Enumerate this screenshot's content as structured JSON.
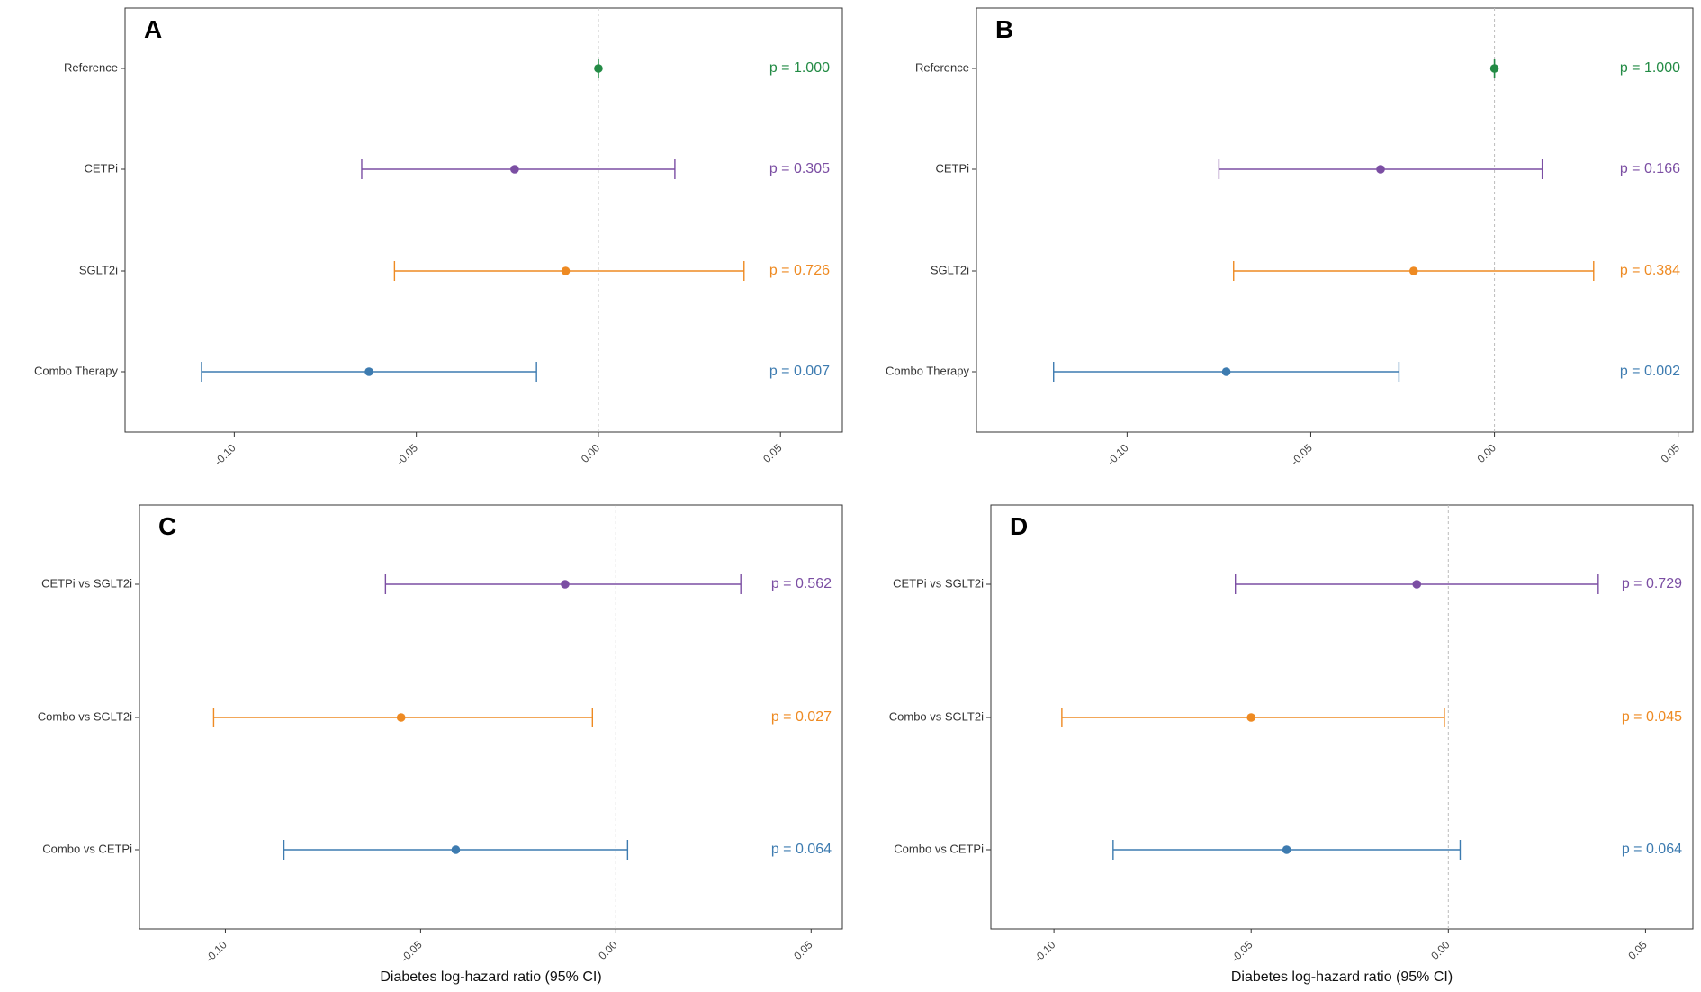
{
  "chart_data": [
    {
      "panel": "A",
      "type": "forest",
      "xlim": [
        -0.13,
        0.067
      ],
      "ticks": [
        -0.1,
        -0.05,
        0.0,
        0.05
      ],
      "tick_labels": [
        "-0.10",
        "-0.05",
        "0.00",
        "0.05"
      ],
      "reference_line": 0,
      "xlabel": "",
      "rows": [
        {
          "label": "Reference",
          "estimate": 0.0,
          "lower": 0.0,
          "upper": 0.0,
          "p": "p = 1.000",
          "color": "#238b45"
        },
        {
          "label": "CETPi",
          "estimate": -0.023,
          "lower": -0.065,
          "upper": 0.021,
          "p": "p = 0.305",
          "color": "#7b4ea3"
        },
        {
          "label": "SGLT2i",
          "estimate": -0.009,
          "lower": -0.056,
          "upper": 0.04,
          "p": "p = 0.726",
          "color": "#ee8a22"
        },
        {
          "label": "Combo Therapy",
          "estimate": -0.063,
          "lower": -0.109,
          "upper": -0.017,
          "p": "p = 0.007",
          "color": "#3d7bb0"
        }
      ]
    },
    {
      "panel": "B",
      "type": "forest",
      "xlim": [
        -0.141,
        0.054
      ],
      "ticks": [
        -0.1,
        -0.05,
        0.0,
        0.05
      ],
      "tick_labels": [
        "-0.10",
        "-0.05",
        "0.00",
        "0.05"
      ],
      "reference_line": 0,
      "xlabel": "",
      "rows": [
        {
          "label": "Reference",
          "estimate": 0.0,
          "lower": 0.0,
          "upper": 0.0,
          "p": "p = 1.000",
          "color": "#238b45"
        },
        {
          "label": "CETPi",
          "estimate": -0.031,
          "lower": -0.075,
          "upper": 0.013,
          "p": "p = 0.166",
          "color": "#7b4ea3"
        },
        {
          "label": "SGLT2i",
          "estimate": -0.022,
          "lower": -0.071,
          "upper": 0.027,
          "p": "p = 0.384",
          "color": "#ee8a22"
        },
        {
          "label": "Combo Therapy",
          "estimate": -0.073,
          "lower": -0.12,
          "upper": -0.026,
          "p": "p = 0.002",
          "color": "#3d7bb0"
        }
      ]
    },
    {
      "panel": "C",
      "type": "forest",
      "xlim": [
        -0.122,
        0.058
      ],
      "ticks": [
        -0.1,
        -0.05,
        0.0,
        0.05
      ],
      "tick_labels": [
        "-0.10",
        "-0.05",
        "0.00",
        "0.05"
      ],
      "reference_line": 0,
      "xlabel": "Diabetes log-hazard ratio (95% CI)",
      "rows": [
        {
          "label": "CETPi vs SGLT2i",
          "estimate": -0.013,
          "lower": -0.059,
          "upper": 0.032,
          "p": "p = 0.562",
          "color": "#7b4ea3"
        },
        {
          "label": "Combo vs SGLT2i",
          "estimate": -0.055,
          "lower": -0.103,
          "upper": -0.006,
          "p": "p = 0.027",
          "color": "#ee8a22"
        },
        {
          "label": "Combo vs CETPi",
          "estimate": -0.041,
          "lower": -0.085,
          "upper": 0.003,
          "p": "p = 0.064",
          "color": "#3d7bb0"
        }
      ]
    },
    {
      "panel": "D",
      "type": "forest",
      "xlim": [
        -0.116,
        0.062
      ],
      "ticks": [
        -0.1,
        -0.05,
        0.0,
        0.05
      ],
      "tick_labels": [
        "-0.10",
        "-0.05",
        "0.00",
        "0.05"
      ],
      "reference_line": 0,
      "xlabel": "Diabetes log-hazard ratio (95% CI)",
      "rows": [
        {
          "label": "CETPi vs SGLT2i",
          "estimate": -0.008,
          "lower": -0.054,
          "upper": 0.038,
          "p": "p = 0.729",
          "color": "#7b4ea3"
        },
        {
          "label": "Combo vs SGLT2i",
          "estimate": -0.05,
          "lower": -0.098,
          "upper": -0.001,
          "p": "p = 0.045",
          "color": "#ee8a22"
        },
        {
          "label": "Combo vs CETPi",
          "estimate": -0.041,
          "lower": -0.085,
          "upper": 0.003,
          "p": "p = 0.064",
          "color": "#3d7bb0"
        }
      ]
    }
  ]
}
